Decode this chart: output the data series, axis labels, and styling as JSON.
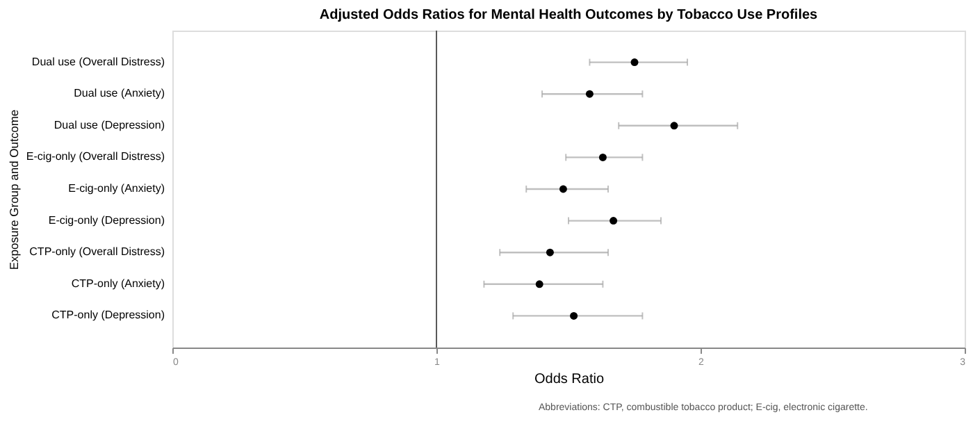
{
  "chart_data": {
    "type": "scatter",
    "orientation": "horizontal",
    "title": "Adjusted Odds Ratios for Mental Health Outcomes by Tobacco Use Profiles",
    "xlabel": "Odds Ratio",
    "ylabel": "Exposure Group and Outcome",
    "categories": [
      "Dual use (Overall Distress)",
      "Dual use (Anxiety)",
      "Dual use (Depression)",
      "E-cig-only (Overall Distress)",
      "E-cig-only (Anxiety)",
      "E-cig-only (Depression)",
      "CTP-only (Overall Distress)",
      "CTP-only (Anxiety)",
      "CTP-only (Depression)"
    ],
    "values": [
      1.75,
      1.58,
      1.9,
      1.63,
      1.48,
      1.67,
      1.43,
      1.39,
      1.52
    ],
    "errors": [
      [
        1.58,
        1.95
      ],
      [
        1.4,
        1.78
      ],
      [
        1.69,
        2.14
      ],
      [
        1.49,
        1.78
      ],
      [
        1.34,
        1.65
      ],
      [
        1.5,
        1.85
      ],
      [
        1.24,
        1.65
      ],
      [
        1.18,
        1.63
      ],
      [
        1.29,
        1.78
      ]
    ],
    "colors": [
      "#000000",
      "#000000",
      "#000000",
      "#000000",
      "#000000",
      "#000000",
      "#000000",
      "#000000",
      "#000000"
    ],
    "xlim": [
      0,
      3
    ],
    "xticks": [
      0,
      1,
      2,
      3
    ],
    "grid": false,
    "marker": "circle",
    "ref_lines": [
      {
        "axis": "x",
        "value": 1,
        "color": "#595959"
      }
    ],
    "annotations": [
      "Abbreviations: CTP, combustible tobacco product; E-cig, electronic cigarette."
    ]
  }
}
